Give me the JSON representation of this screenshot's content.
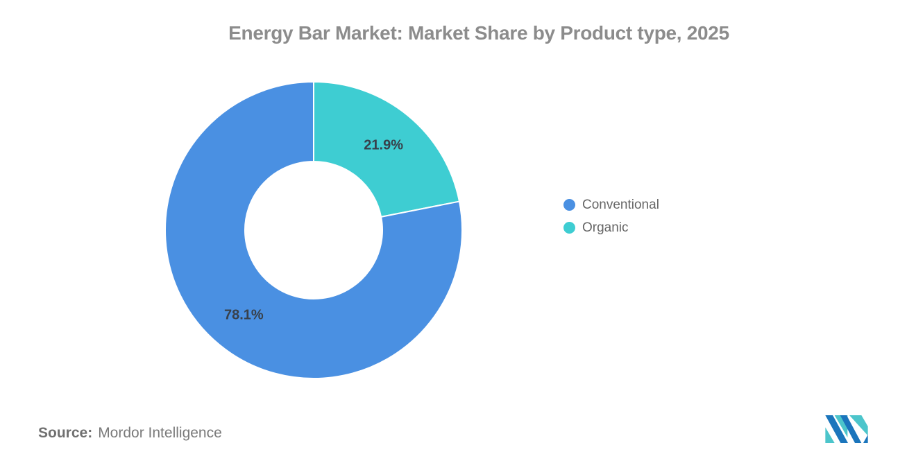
{
  "title": "Energy Bar Market: Market Share by Product type, 2025",
  "chart_data": {
    "type": "pie",
    "subtype": "donut",
    "title": "Energy Bar Market: Market Share by Product type, 2025",
    "categories": [
      "Conventional",
      "Organic"
    ],
    "values": [
      78.1,
      21.9
    ],
    "labels": [
      "78.1%",
      "21.9%"
    ],
    "colors": [
      "#4a90e2",
      "#3ecdd2"
    ],
    "label_color": "#38404a",
    "inner_radius_ratio": 0.463,
    "start_at_top": true,
    "draw_order": [
      1,
      0
    ],
    "legend_position": "right"
  },
  "legend": {
    "items": [
      {
        "label": "Conventional",
        "color": "#4a90e2"
      },
      {
        "label": "Organic",
        "color": "#3ecdd2"
      }
    ]
  },
  "source": {
    "label": "Source:",
    "value": "Mordor Intelligence"
  },
  "logo": {
    "name": "mordor-intelligence-logo",
    "colors": {
      "blue": "#1b75bc",
      "teal": "#4cc5cb"
    }
  }
}
